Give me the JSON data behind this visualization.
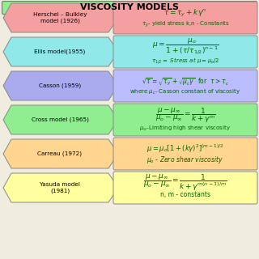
{
  "title": "VISCOSITY MODELS",
  "title_bg": "#90EE90",
  "background": "#f0ede0",
  "row_label_colors": [
    "#F4A0A0",
    "#90E8E8",
    "#AAAAEE",
    "#90EE90",
    "#FFD590",
    "#FFFFA0"
  ],
  "row_formula_colors": [
    "#F4A0A0",
    "#90E8E8",
    "#BBBBFF",
    "#90EE90",
    "#FFD590",
    "#FFFFA0"
  ],
  "rows": [
    {
      "label": "Herschel – Bulkley\nmodel (1926)",
      "eq1": "$\\tau = \\tau_y + k\\gamma^n$",
      "eq2": "$\\tau_y$- yield stress k,n - Constants"
    },
    {
      "label": "Ellis model(1955)",
      "eq1": "$\\mu = \\dfrac{\\mu_o}{1+(\\tau/\\tau_{1/2})^{n-1}}$",
      "eq2": "$\\tau_{1/2} =$ Stress at $\\mu = \\mu_o/2$"
    },
    {
      "label": "Casson (1959)",
      "eq1": "$\\sqrt{\\tau} = \\sqrt{\\tau_y} + \\sqrt{\\mu_c\\gamma}$  for  $\\tau > \\tau_c$",
      "eq2": "where $\\mu_c$- Casson constant of viscosity"
    },
    {
      "label": "Cross model (1965)",
      "eq1": "$\\dfrac{\\mu-\\mu_\\infty}{\\mu_o-\\mu_\\infty} = \\dfrac{1}{k+\\gamma^m}$",
      "eq2": "$\\mu_\\infty$-Limiting high shear viscosity"
    },
    {
      "label": "Carreau (1972)",
      "eq1": "$\\mu = \\mu_o[1+(k\\gamma)^2]^{(m-1)/2}$",
      "eq2": "$\\mu_o$ - Zero shear viscosity"
    },
    {
      "label": "Yasuda model\n(1981)",
      "eq1": "$\\dfrac{\\mu-\\mu_\\infty}{\\mu_o-\\mu_\\infty} = \\dfrac{1}{k+\\gamma^{m(n-1)/m}}$",
      "eq2": "n, m - constants"
    }
  ]
}
